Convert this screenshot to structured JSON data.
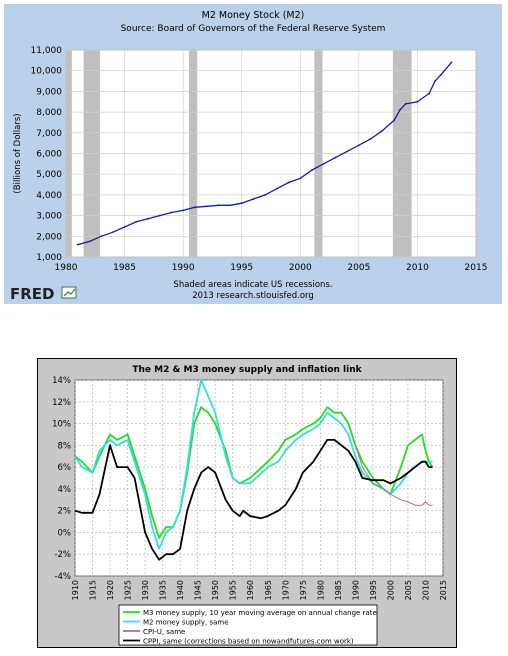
{
  "chart_data": [
    {
      "type": "line",
      "title": "M2 Money Stock (M2)",
      "subtitle": "Source: Board of Governors of the Federal Reserve System",
      "ylabel": "(Billions of Dollars)",
      "xlabel": "",
      "xlim": [
        1980,
        2015
      ],
      "ylim": [
        1000,
        11000
      ],
      "x_ticks": [
        1980,
        1985,
        1990,
        1995,
        2000,
        2005,
        2010,
        2015
      ],
      "y_ticks": [
        1000,
        2000,
        3000,
        4000,
        5000,
        6000,
        7000,
        8000,
        9000,
        10000,
        11000
      ],
      "y_tick_labels": [
        "1,000",
        "2,000",
        "3,000",
        "4,000",
        "5,000",
        "6,000",
        "7,000",
        "8,000",
        "9,000",
        "10,000",
        "11,000"
      ],
      "grid": true,
      "recessions": [
        [
          1980.0,
          1980.5
        ],
        [
          1981.5,
          1982.9
        ],
        [
          1990.5,
          1991.2
        ],
        [
          2001.2,
          2001.9
        ],
        [
          2007.9,
          2009.5
        ]
      ],
      "note": "Shaded areas indicate US recessions.",
      "credit": "2013 research.stlouisfed.org",
      "logo": "FRED",
      "colors": {
        "line": "#1a1aa8",
        "recession": "#bfbfbf",
        "background": "#b9d1ea",
        "plot": "#ffffff"
      },
      "series": [
        {
          "x": [
            1981,
            1982,
            1983,
            1984,
            1985,
            1986,
            1987,
            1988,
            1989,
            1990,
            1991,
            1992,
            1993,
            1994,
            1995,
            1996,
            1997,
            1998,
            1999,
            2000,
            2001,
            2002,
            2003,
            2004,
            2005,
            2006,
            2007,
            2008,
            2008.5,
            2009,
            2010,
            2011,
            2011.5,
            2012,
            2012.9
          ],
          "y": [
            1600,
            1750,
            2000,
            2200,
            2450,
            2700,
            2850,
            3000,
            3150,
            3250,
            3400,
            3450,
            3500,
            3500,
            3600,
            3800,
            4000,
            4300,
            4600,
            4800,
            5200,
            5500,
            5800,
            6100,
            6400,
            6700,
            7100,
            7600,
            8100,
            8400,
            8500,
            8900,
            9500,
            9800,
            10400
          ]
        }
      ]
    },
    {
      "type": "line",
      "title": "The M2 & M3 money supply and inflation link",
      "xlabel": "",
      "ylabel": "",
      "xlim": [
        1910,
        2015
      ],
      "ylim": [
        -4,
        14
      ],
      "x_ticks": [
        1910,
        1915,
        1920,
        1925,
        1930,
        1935,
        1940,
        1945,
        1950,
        1955,
        1960,
        1965,
        1970,
        1975,
        1980,
        1985,
        1990,
        1995,
        2000,
        2005,
        2010,
        2015
      ],
      "y_ticks": [
        -4,
        -2,
        0,
        2,
        4,
        6,
        8,
        10,
        12,
        14
      ],
      "y_tick_labels": [
        "-4%",
        "-2%",
        "0%",
        "2%",
        "4%",
        "6%",
        "8%",
        "10%",
        "12%",
        "14%"
      ],
      "grid": true,
      "legend": "bottom",
      "colors": {
        "background": "#c8c8c8",
        "plot": "#ffffff"
      },
      "series": [
        {
          "name": "M3 money supply, 10 year moving average on annual change rate",
          "color": "#22dd22",
          "x": [
            1910,
            1912,
            1915,
            1917,
            1920,
            1922,
            1925,
            1927,
            1930,
            1932,
            1934,
            1936,
            1938,
            1940,
            1942,
            1944,
            1946,
            1948,
            1950,
            1953,
            1955,
            1957,
            1960,
            1965,
            1968,
            1970,
            1973,
            1975,
            1978,
            1980,
            1982,
            1984,
            1986,
            1988,
            1990,
            1992,
            1995,
            1998,
            2000,
            2003,
            2005,
            2007,
            2009,
            2010,
            2011,
            2012
          ],
          "y": [
            7,
            6.5,
            5.5,
            7,
            9,
            8.5,
            9,
            7,
            4,
            1.5,
            -0.5,
            0.5,
            0.5,
            2,
            5.5,
            10,
            11.5,
            11,
            10,
            7.5,
            5,
            4.5,
            5,
            6.5,
            7.5,
            8.5,
            9,
            9.5,
            10,
            10.5,
            11.5,
            11,
            11,
            10,
            8,
            6.5,
            5,
            4,
            3.5,
            6,
            8,
            8.5,
            9,
            7.5,
            6.5,
            6
          ]
        },
        {
          "name": "M2 money supply, same",
          "color": "#33dddd",
          "x": [
            1910,
            1912,
            1915,
            1917,
            1920,
            1922,
            1925,
            1927,
            1930,
            1932,
            1934,
            1936,
            1938,
            1940,
            1942,
            1944,
            1946,
            1948,
            1950,
            1953,
            1955,
            1957,
            1960,
            1965,
            1968,
            1970,
            1973,
            1975,
            1978,
            1980,
            1982,
            1984,
            1986,
            1988,
            1990,
            1992,
            1995,
            1998,
            2000,
            2003,
            2005,
            2007,
            2009,
            2010,
            2011,
            2012
          ],
          "y": [
            7,
            6,
            5.5,
            7.5,
            8.5,
            8,
            8.5,
            6.5,
            3.5,
            0.5,
            -1.5,
            0,
            0.5,
            2,
            6,
            11,
            14,
            12.5,
            11,
            7,
            5,
            4.5,
            4.5,
            6,
            6.5,
            7.5,
            8.5,
            9,
            9.5,
            10,
            11,
            10.5,
            10,
            9,
            7,
            5.5,
            4.5,
            4,
            3.5,
            4.5,
            5.5,
            6,
            6.5,
            6.5,
            6.5,
            6.5
          ]
        },
        {
          "name": "CPI-U, same",
          "color": "#b07070",
          "x": [
            1990,
            1992,
            1995,
            1998,
            2000,
            2003,
            2005,
            2007,
            2009,
            2010,
            2011,
            2012
          ],
          "y": [
            8,
            6,
            4.5,
            4,
            3.5,
            3,
            2.8,
            2.5,
            2.5,
            2.8,
            2.5,
            2.5
          ]
        },
        {
          "name": "CPPI, same (corrections based on nowandfutures.com work)",
          "color": "#000000",
          "x": [
            1910,
            1912,
            1915,
            1917,
            1920,
            1922,
            1925,
            1927,
            1930,
            1932,
            1934,
            1936,
            1938,
            1940,
            1942,
            1944,
            1946,
            1948,
            1950,
            1953,
            1955,
            1957,
            1958,
            1960,
            1963,
            1965,
            1968,
            1970,
            1973,
            1975,
            1978,
            1980,
            1982,
            1984,
            1986,
            1988,
            1990,
            1992,
            1995,
            1998,
            2000,
            2003,
            2005,
            2007,
            2009,
            2010,
            2011,
            2012
          ],
          "y": [
            2,
            1.8,
            1.8,
            3.5,
            8,
            6,
            6,
            5,
            0,
            -1.5,
            -2.5,
            -2,
            -2,
            -1.5,
            2,
            4,
            5.5,
            6,
            5.5,
            3,
            2,
            1.5,
            2,
            1.5,
            1.3,
            1.5,
            2,
            2.5,
            4,
            5.5,
            6.5,
            7.5,
            8.5,
            8.5,
            8,
            7.5,
            6.5,
            5,
            4.8,
            4.8,
            4.5,
            5,
            5.5,
            6,
            6.5,
            6.5,
            6,
            6
          ]
        }
      ]
    }
  ]
}
